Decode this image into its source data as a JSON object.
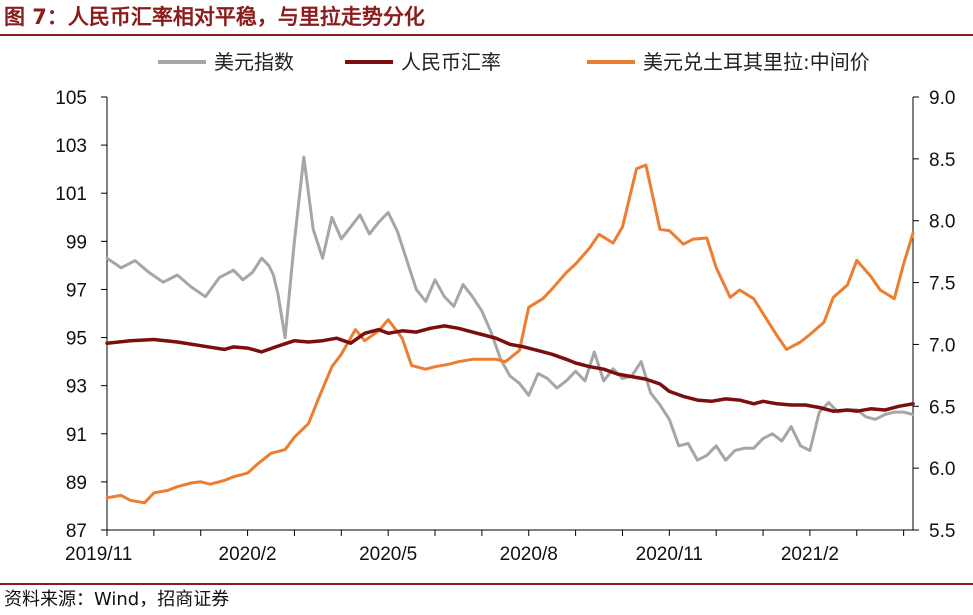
{
  "header": {
    "title": "图 7：人民币汇率相对平稳，与里拉走势分化"
  },
  "footer": {
    "source": "资料来源：Wind，招商证券"
  },
  "colors": {
    "brand": "#8b1c1c",
    "usd": "#a6a6a6",
    "cny": "#7b0f0f",
    "try": "#ed7d31"
  },
  "chart_data": {
    "type": "line",
    "title": "人民币汇率相对平稳，与里拉走势分化",
    "x_ticks": [
      "2019/11",
      "2020/2",
      "2020/5",
      "2020/8",
      "2020/11",
      "2021/2"
    ],
    "x_range": [
      "2019/11",
      "2021/4"
    ],
    "y_left": {
      "min": 87,
      "max": 105,
      "ticks": [
        "87",
        "89",
        "91",
        "93",
        "95",
        "97",
        "99",
        "101",
        "103",
        "105"
      ]
    },
    "y_right": {
      "min": 5.5,
      "max": 9.0,
      "ticks": [
        "5.5",
        "6.0",
        "6.5",
        "7.0",
        "7.5",
        "8.0",
        "8.5",
        "9.0"
      ]
    },
    "legend": {
      "position": "top"
    },
    "series": [
      {
        "name": "美元指数",
        "axis": "left",
        "color": "#a6a6a6",
        "x": [
          0,
          0.3,
          0.6,
          0.9,
          1.2,
          1.5,
          1.8,
          2.1,
          2.4,
          2.7,
          2.9,
          3.1,
          3.3,
          3.45,
          3.55,
          3.65,
          3.8,
          4.0,
          4.2,
          4.4,
          4.6,
          4.8,
          5.0,
          5.2,
          5.4,
          5.6,
          5.8,
          6.0,
          6.2,
          6.4,
          6.6,
          6.8,
          7.0,
          7.2,
          7.4,
          7.6,
          7.8,
          8.0,
          8.2,
          8.4,
          8.6,
          8.8,
          9.0,
          9.2,
          9.4,
          9.6,
          9.8,
          10.0,
          10.2,
          10.4,
          10.6,
          10.8,
          11.0,
          11.2,
          11.4,
          11.6,
          11.8,
          12.0,
          12.2,
          12.4,
          12.6,
          12.8,
          13.0,
          13.2,
          13.4,
          13.6,
          13.8,
          14.0,
          14.2,
          14.4,
          14.6,
          14.8,
          15.0,
          15.2,
          15.4,
          15.6,
          15.8,
          16.0,
          16.2,
          16.4,
          16.6,
          16.8,
          17.0,
          17.2
        ],
        "values": [
          98.3,
          97.9,
          98.2,
          97.7,
          97.3,
          97.6,
          97.1,
          96.7,
          97.5,
          97.8,
          97.4,
          97.7,
          98.3,
          98.0,
          97.6,
          96.8,
          95.0,
          99.0,
          102.5,
          99.5,
          98.3,
          100.0,
          99.1,
          99.6,
          100.1,
          99.3,
          99.8,
          100.2,
          99.4,
          98.2,
          97.0,
          96.5,
          97.4,
          96.7,
          96.3,
          97.2,
          96.7,
          96.1,
          95.2,
          94.1,
          93.4,
          93.1,
          92.6,
          93.5,
          93.3,
          92.9,
          93.2,
          93.6,
          93.2,
          94.4,
          93.2,
          93.7,
          93.3,
          93.4,
          94.0,
          92.7,
          92.2,
          91.6,
          90.5,
          90.6,
          89.9,
          90.1,
          90.5,
          89.9,
          90.3,
          90.4,
          90.4,
          90.8,
          91.0,
          90.7,
          91.3,
          90.5,
          90.3,
          91.9,
          92.3,
          91.9,
          92.0,
          92.0,
          91.7,
          91.6,
          91.8,
          91.9,
          91.9,
          91.8
        ]
      },
      {
        "name": "人民币汇率",
        "axis": "right",
        "color": "#7b0f0f",
        "x": [
          0,
          0.5,
          1.0,
          1.5,
          2.0,
          2.5,
          2.7,
          3.0,
          3.3,
          3.6,
          4.0,
          4.3,
          4.6,
          4.9,
          5.2,
          5.5,
          5.8,
          6.0,
          6.3,
          6.6,
          6.9,
          7.2,
          7.5,
          7.8,
          8.0,
          8.3,
          8.6,
          8.9,
          9.2,
          9.5,
          9.8,
          10.0,
          10.3,
          10.6,
          10.9,
          11.2,
          11.5,
          11.8,
          12.0,
          12.3,
          12.6,
          12.9,
          13.2,
          13.5,
          13.8,
          14.0,
          14.3,
          14.6,
          14.9,
          15.2,
          15.5,
          15.8,
          16.0,
          16.3,
          16.6,
          16.9,
          17.2
        ],
        "values": [
          7.01,
          7.03,
          7.04,
          7.02,
          6.99,
          6.96,
          6.98,
          6.97,
          6.94,
          6.98,
          7.03,
          7.02,
          7.03,
          7.05,
          7.01,
          7.09,
          7.12,
          7.09,
          7.11,
          7.1,
          7.13,
          7.15,
          7.13,
          7.1,
          7.08,
          7.05,
          7.0,
          6.98,
          6.95,
          6.92,
          6.88,
          6.85,
          6.82,
          6.8,
          6.76,
          6.74,
          6.72,
          6.68,
          6.62,
          6.58,
          6.55,
          6.54,
          6.56,
          6.55,
          6.52,
          6.54,
          6.52,
          6.51,
          6.51,
          6.49,
          6.46,
          6.47,
          6.46,
          6.48,
          6.47,
          6.5,
          6.52
        ]
      },
      {
        "name": "美元兑土耳其里拉:中间价",
        "axis": "right",
        "color": "#ed7d31",
        "x": [
          0,
          0.3,
          0.5,
          0.8,
          1.0,
          1.3,
          1.5,
          1.8,
          2.0,
          2.2,
          2.5,
          2.7,
          3.0,
          3.2,
          3.5,
          3.8,
          4.0,
          4.3,
          4.5,
          4.8,
          5.0,
          5.3,
          5.5,
          5.8,
          6.0,
          6.3,
          6.5,
          6.8,
          7.0,
          7.3,
          7.5,
          7.8,
          8.0,
          8.3,
          8.5,
          8.8,
          9.0,
          9.3,
          9.5,
          9.8,
          10.0,
          10.3,
          10.5,
          10.8,
          11.0,
          11.3,
          11.5,
          11.8,
          12.0,
          12.3,
          12.5,
          12.8,
          13.0,
          13.3,
          13.5,
          13.8,
          14.0,
          14.3,
          14.5,
          14.8,
          15.0,
          15.3,
          15.5,
          15.8,
          16.0,
          16.3,
          16.5,
          16.8,
          17.0,
          17.2
        ],
        "values": [
          5.76,
          5.78,
          5.74,
          5.72,
          5.8,
          5.82,
          5.85,
          5.88,
          5.89,
          5.87,
          5.9,
          5.93,
          5.96,
          6.03,
          6.12,
          6.15,
          6.25,
          6.36,
          6.55,
          6.82,
          6.92,
          7.12,
          7.03,
          7.11,
          7.2,
          7.05,
          6.83,
          6.8,
          6.82,
          6.84,
          6.86,
          6.88,
          6.88,
          6.88,
          6.86,
          6.95,
          7.3,
          7.37,
          7.45,
          7.58,
          7.65,
          7.78,
          7.89,
          7.82,
          7.95,
          8.42,
          8.45,
          7.93,
          7.92,
          7.81,
          7.85,
          7.86,
          7.62,
          7.38,
          7.44,
          7.37,
          7.25,
          7.07,
          6.96,
          7.02,
          7.08,
          7.18,
          7.38,
          7.48,
          7.68,
          7.55,
          7.44,
          7.37,
          7.65,
          7.9
        ]
      }
    ]
  }
}
